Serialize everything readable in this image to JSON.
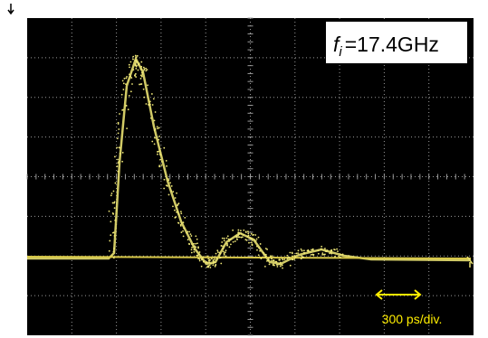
{
  "annotation": {
    "symbol": "f",
    "subscript": "i",
    "value": "=17.4GHz"
  },
  "scale_label": "300 ps/div."
}
